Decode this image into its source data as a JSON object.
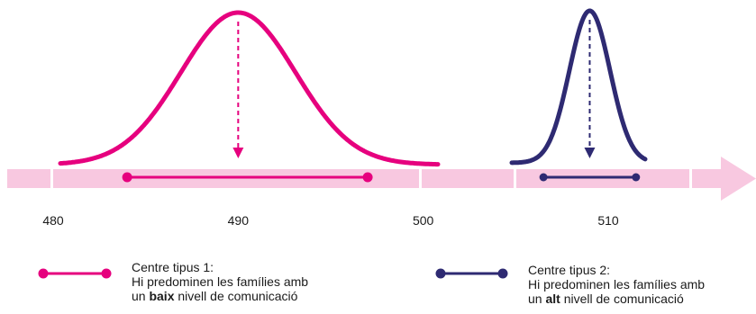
{
  "chart_data": {
    "type": "distribution",
    "x_ticks": [
      480,
      490,
      500,
      510
    ],
    "series": [
      {
        "name": "Centre tipus 1",
        "color": "#e6007e",
        "mean": 490,
        "sd": 3.1,
        "interval": [
          484,
          497
        ]
      },
      {
        "name": "Centre tipus 2",
        "color": "#2e2a72",
        "mean": 509,
        "sd": 1.1,
        "interval": [
          506.5,
          511.5
        ]
      }
    ]
  },
  "legend": {
    "item1": {
      "title": "Centre tipus 1:",
      "line2": "Hi predominen les famílies amb",
      "line3_pre": "un ",
      "line3_bold": "baix",
      "line3_post": " nivell de comunicació"
    },
    "item2": {
      "title": "Centre tipus 2:",
      "line2": "Hi predominen les famílies amb",
      "line3_pre": "un ",
      "line3_bold": "alt",
      "line3_post": " nivell de comunicació"
    }
  },
  "colors": {
    "axis_band": "#f8c8e0",
    "series1": "#e6007e",
    "series2": "#2e2a72"
  }
}
